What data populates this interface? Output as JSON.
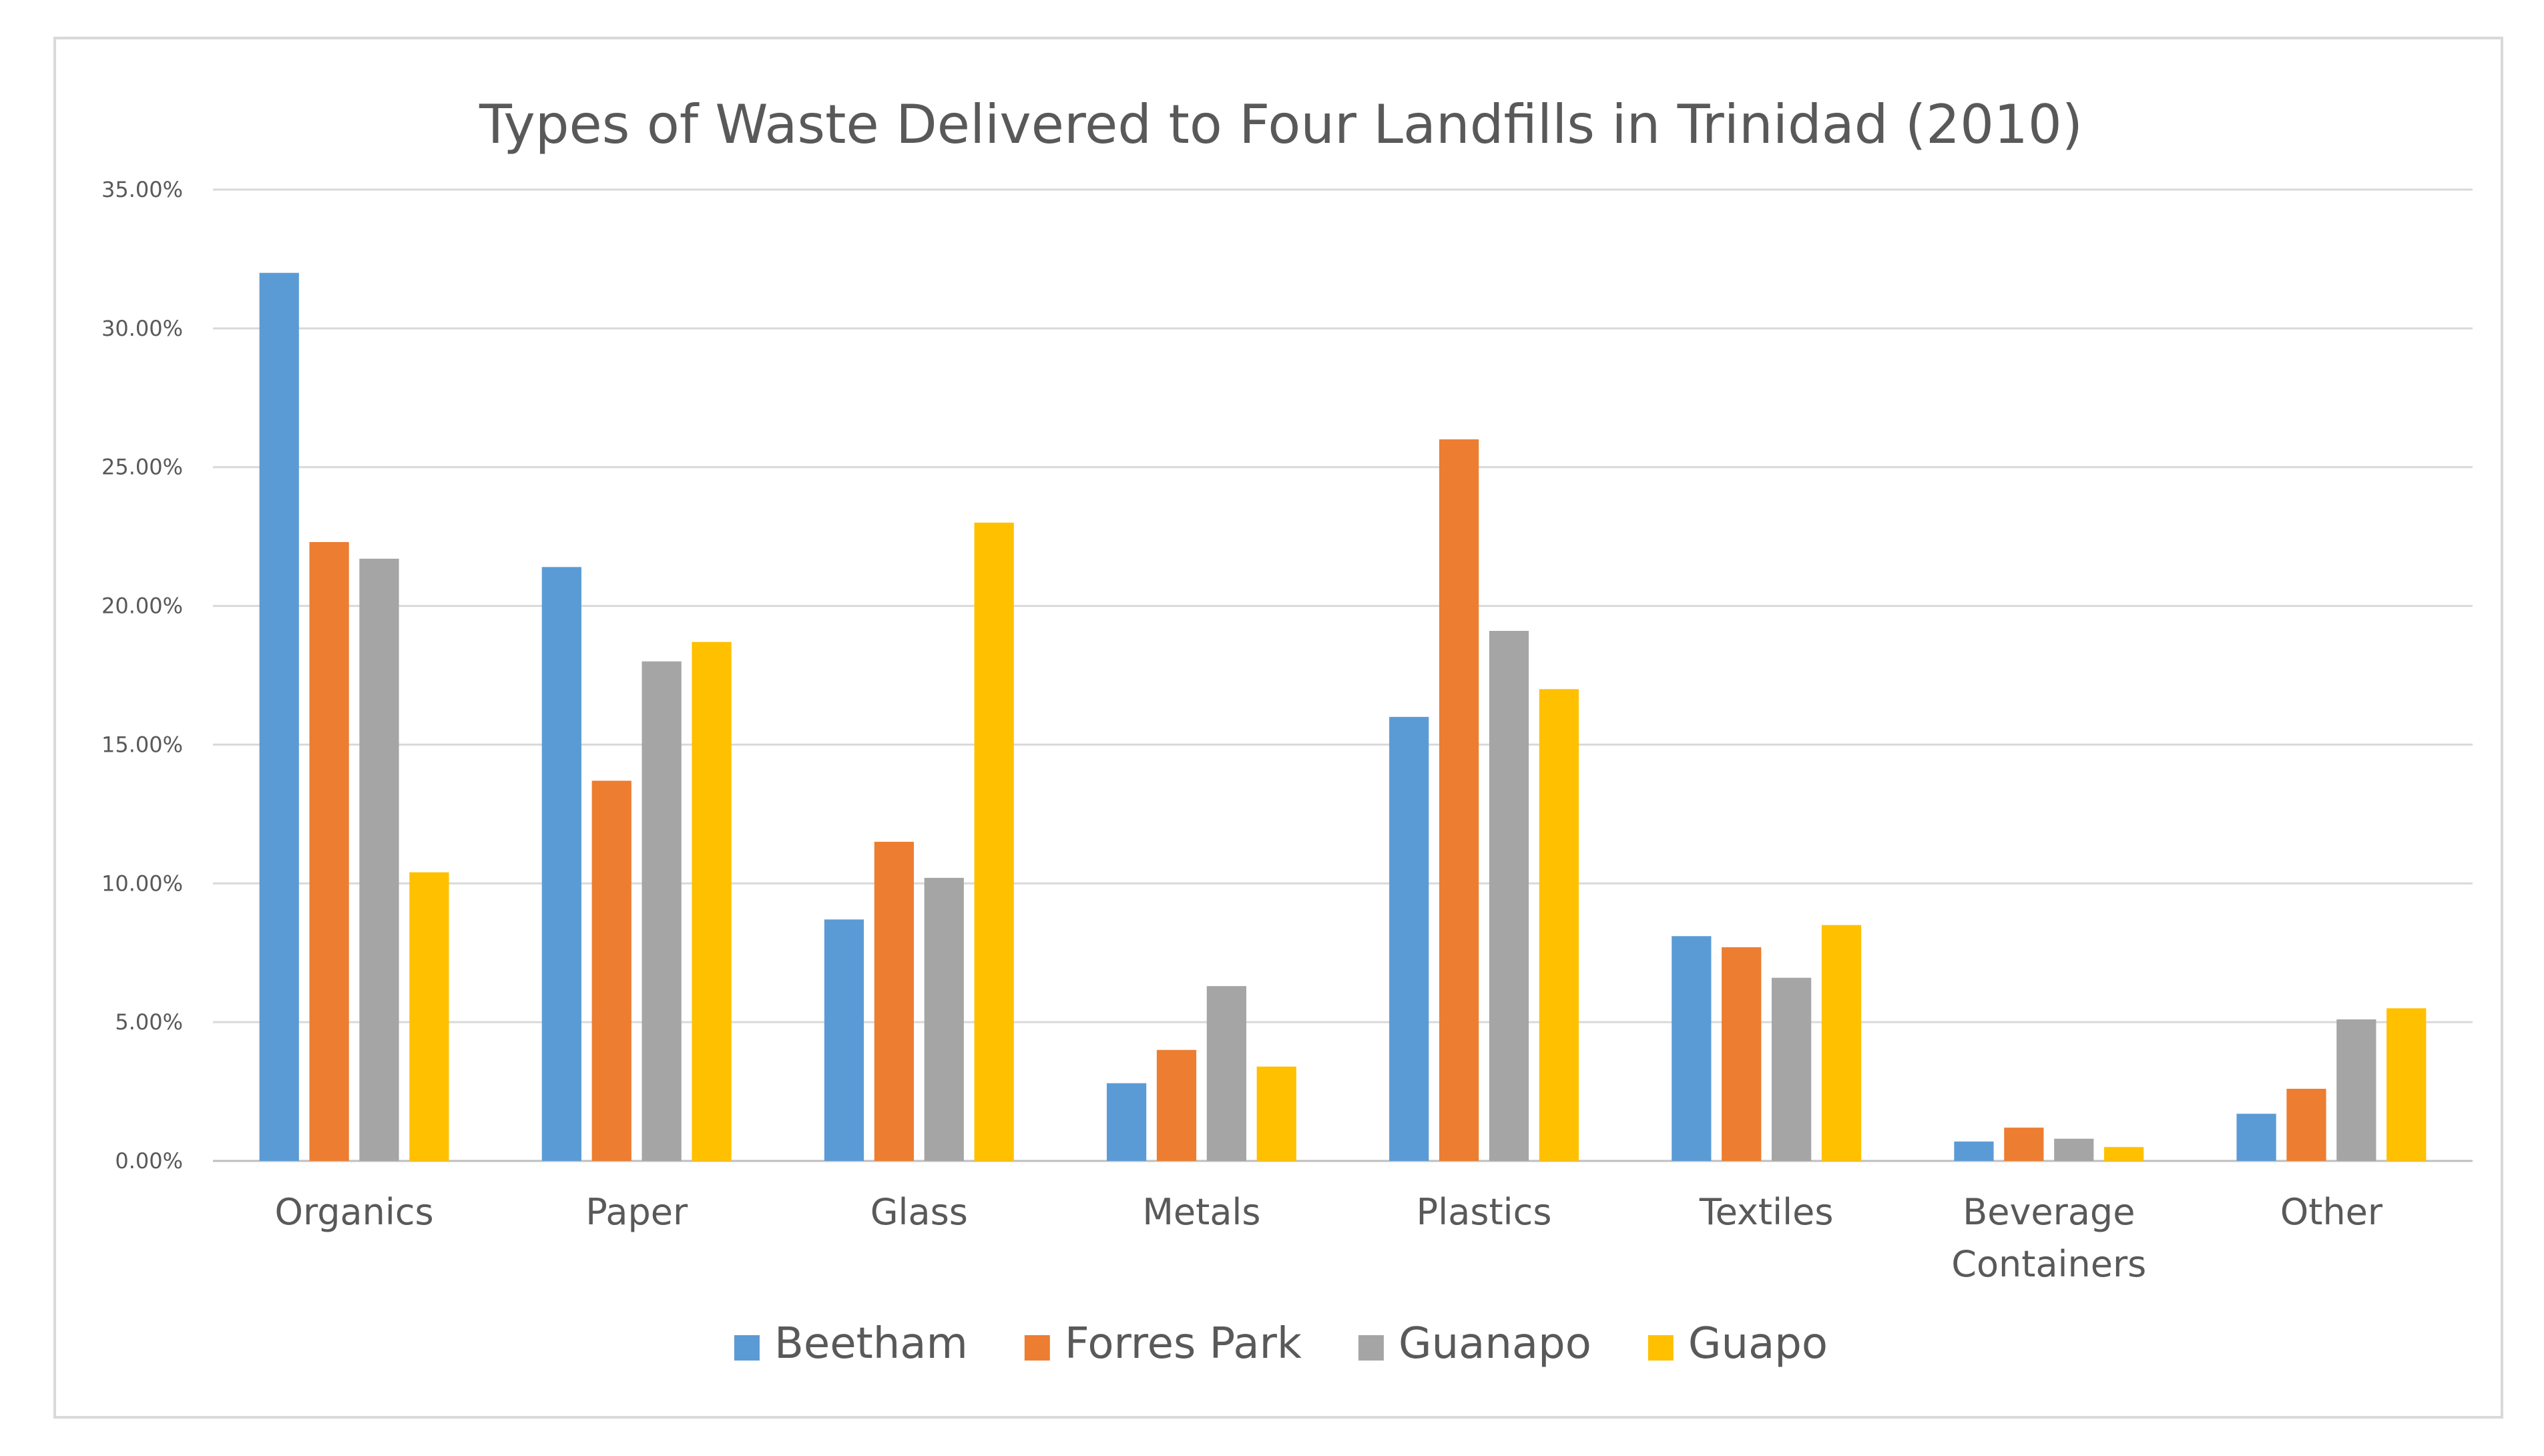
{
  "chart_data": {
    "type": "bar",
    "title": "Types of Waste Delivered to Four Landfills in Trinidad (2010)",
    "xlabel": "",
    "ylabel": "",
    "ylim": [
      0,
      35
    ],
    "y_ticks": [
      "0.00%",
      "5.00%",
      "10.00%",
      "15.00%",
      "20.00%",
      "25.00%",
      "30.00%",
      "35.00%"
    ],
    "y_tick_values": [
      0,
      5,
      10,
      15,
      20,
      25,
      30,
      35
    ],
    "categories": [
      "Organics",
      "Paper",
      "Glass",
      "Metals",
      "Plastics",
      "Textiles",
      "Beverage Containers",
      "Other"
    ],
    "category_lines": [
      [
        "Organics"
      ],
      [
        "Paper"
      ],
      [
        "Glass"
      ],
      [
        "Metals"
      ],
      [
        "Plastics"
      ],
      [
        "Textiles"
      ],
      [
        "Beverage",
        "Containers"
      ],
      [
        "Other"
      ]
    ],
    "grid": true,
    "legend_position": "bottom",
    "series": [
      {
        "name": "Beetham",
        "color": "#5b9bd5",
        "values": [
          32.0,
          21.4,
          8.7,
          2.8,
          16.0,
          8.1,
          0.7,
          1.7
        ]
      },
      {
        "name": "Forres Park",
        "color": "#ed7d31",
        "values": [
          22.3,
          13.7,
          11.5,
          4.0,
          26.0,
          7.7,
          1.2,
          2.6
        ]
      },
      {
        "name": "Guanapo",
        "color": "#a5a5a5",
        "values": [
          21.7,
          18.0,
          10.2,
          6.3,
          19.1,
          6.6,
          0.8,
          5.1
        ]
      },
      {
        "name": "Guapo",
        "color": "#ffc000",
        "values": [
          10.4,
          18.7,
          23.0,
          3.4,
          17.0,
          8.5,
          0.5,
          5.5
        ]
      }
    ]
  }
}
